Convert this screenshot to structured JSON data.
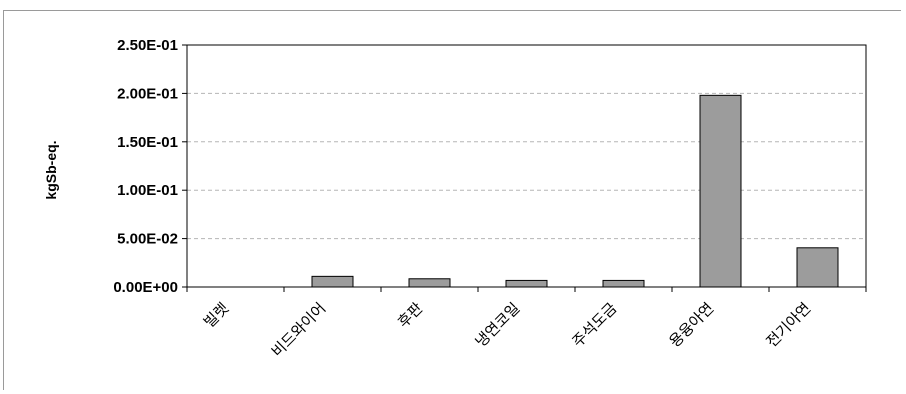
{
  "chart_data": {
    "type": "bar",
    "title": "",
    "xlabel": "",
    "ylabel": "kgSb-eq.",
    "categories": [
      "빌렛",
      "비드와이어",
      "후판",
      "냉연코일",
      "주석도금",
      "용융아연",
      "전기아연"
    ],
    "values": [
      0.0,
      0.011,
      0.0085,
      0.0068,
      0.0068,
      0.198,
      0.0405
    ],
    "ylim": [
      0,
      0.25
    ],
    "yticks": [
      0,
      0.05,
      0.1,
      0.15,
      0.2,
      0.25
    ],
    "ytick_labels": [
      "0.00E+00",
      "5.00E-02",
      "1.00E-01",
      "1.50E-01",
      "2.00E-01",
      "2.50E-01"
    ],
    "grid": true,
    "legend": "none",
    "bar_color": "#9c9c9c",
    "bar_stroke": "#000000"
  }
}
